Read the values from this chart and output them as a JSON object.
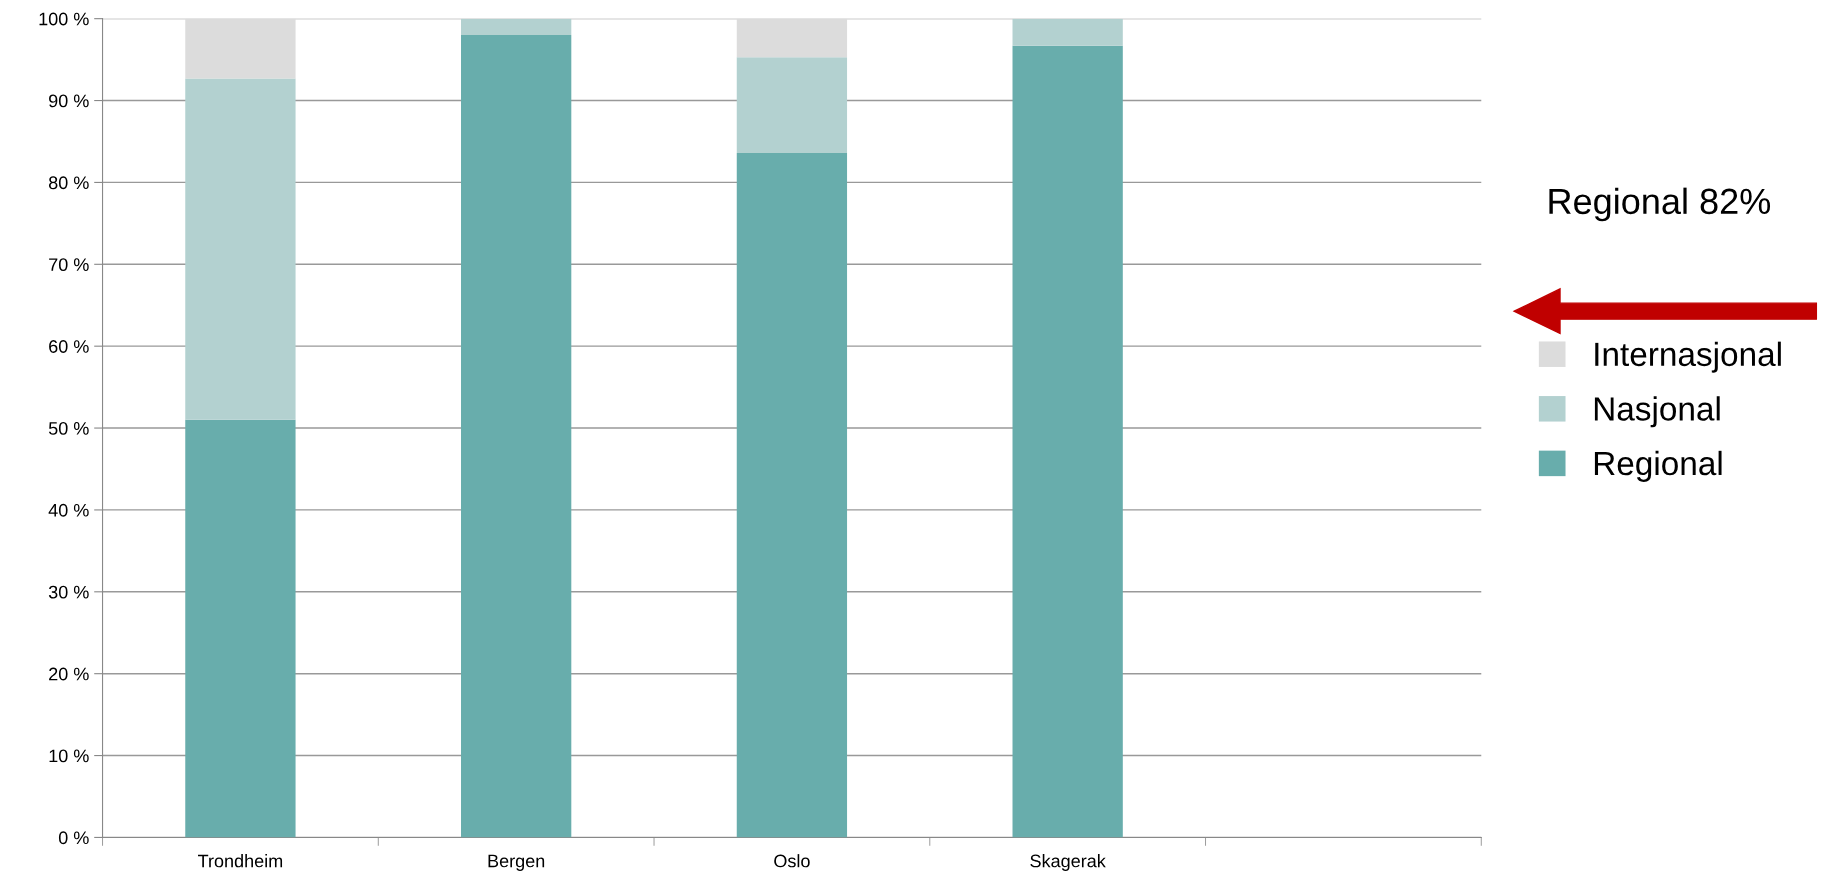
{
  "chart_data": {
    "type": "bar",
    "stacked": true,
    "categories": [
      "Trondheim",
      "Bergen",
      "Oslo",
      "Skagerak",
      null
    ],
    "series": [
      {
        "name": "Regional",
        "color": "#68adac",
        "values": [
          51,
          98,
          83.6,
          96.7,
          null
        ]
      },
      {
        "name": "Nasjonal",
        "color": "#b3d1d0",
        "values": [
          41.7,
          2,
          11.7,
          3.3,
          null
        ]
      },
      {
        "name": "Internasjonal",
        "color": "#dcdcdc",
        "values": [
          7.3,
          0,
          4.7,
          0,
          null
        ]
      }
    ],
    "ylim": [
      0,
      100
    ],
    "yticks": [
      {
        "value": 0,
        "label": "0 %"
      },
      {
        "value": 10,
        "label": "10 %"
      },
      {
        "value": 20,
        "label": "20 %"
      },
      {
        "value": 30,
        "label": "30 %"
      },
      {
        "value": 40,
        "label": "40 %"
      },
      {
        "value": 50,
        "label": "50 %"
      },
      {
        "value": 60,
        "label": "60 %"
      },
      {
        "value": 70,
        "label": "70 %"
      },
      {
        "value": 80,
        "label": "80 %"
      },
      {
        "value": 90,
        "label": "90 %"
      },
      {
        "value": 100,
        "label": "100 %"
      }
    ],
    "grid": "y",
    "legend": "right",
    "annotations": [
      "Regional 82%"
    ]
  }
}
